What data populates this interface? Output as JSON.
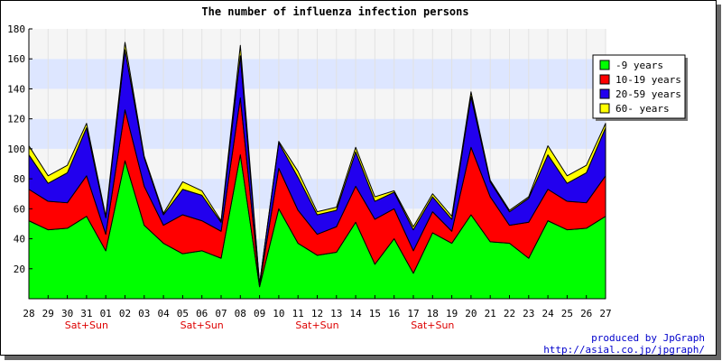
{
  "chart_data": {
    "type": "area",
    "stacked": true,
    "title": "The number of influenza infection persons",
    "categories": [
      "28",
      "29",
      "30",
      "31",
      "01",
      "02",
      "03",
      "04",
      "05",
      "06",
      "07",
      "08",
      "09",
      "10",
      "11",
      "12",
      "13",
      "14",
      "15",
      "16",
      "17",
      "18",
      "19",
      "20",
      "21",
      "22",
      "23",
      "24",
      "25",
      "26",
      "27"
    ],
    "weekend_label": "Sat+Sun",
    "weekend_categories": [
      "31",
      "06",
      "12",
      "18"
    ],
    "ylim": [
      0,
      180
    ],
    "yticks": [
      20,
      40,
      60,
      80,
      100,
      120,
      140,
      160,
      180
    ],
    "grid": true,
    "legend_position": "top-right",
    "series": [
      {
        "name": "-9 years",
        "color": "#00ff00",
        "values": [
          52,
          46,
          47,
          55,
          32,
          92,
          49,
          37,
          30,
          32,
          27,
          96,
          8,
          60,
          37,
          29,
          31,
          51,
          23,
          40,
          17,
          44,
          37,
          56,
          38,
          37,
          27,
          52,
          46,
          47,
          55
        ]
      },
      {
        "name": "10-19 years",
        "color": "#ff0000",
        "values": [
          21,
          19,
          17,
          27,
          11,
          34,
          26,
          12,
          26,
          20,
          18,
          38,
          1,
          27,
          22,
          14,
          17,
          24,
          30,
          20,
          15,
          14,
          8,
          45,
          30,
          12,
          24,
          21,
          19,
          17,
          27
        ]
      },
      {
        "name": "20-59 years",
        "color": "#2200ee",
        "values": [
          23,
          12,
          20,
          32,
          11,
          40,
          19,
          7,
          17,
          17,
          6,
          28,
          1,
          17,
          22,
          13,
          11,
          23,
          12,
          11,
          14,
          10,
          8,
          34,
          10,
          9,
          16,
          23,
          12,
          20,
          32
        ]
      },
      {
        "name": "60- years",
        "color": "#ffff00",
        "values": [
          6,
          5,
          5,
          3,
          1,
          5,
          1,
          1,
          5,
          3,
          1,
          7,
          0,
          1,
          4,
          2,
          2,
          3,
          3,
          1,
          2,
          2,
          2,
          3,
          1,
          1,
          1,
          6,
          5,
          5,
          3
        ]
      }
    ]
  },
  "footer": {
    "line1": "produced by JpGraph",
    "line2": "http://asial.co.jp/jpgraph/"
  }
}
